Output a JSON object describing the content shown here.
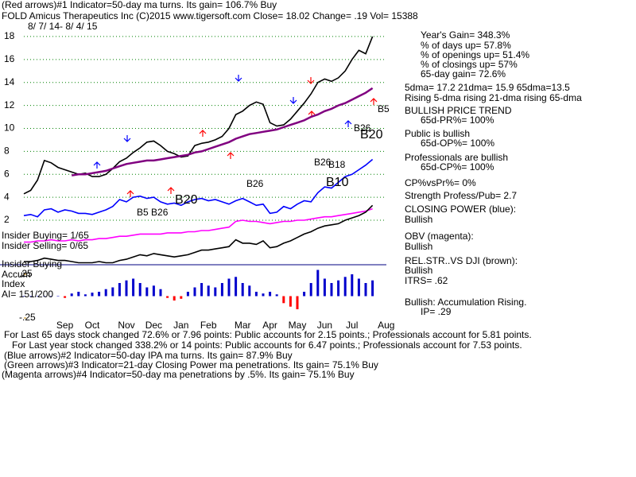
{
  "header": [
    "(Red arrows)#1 Indicator=50-day ma turns. Its gain= 106.7% Buy",
    "FOLD   Amicus Therapeutics Inc  (C)2015 www.tigersoft.com    Close=  18.02  Change= .19 Vol= 15388",
    "8/ 7/ 14-  8/ 4/ 15"
  ],
  "chart_data": [
    {
      "type": "line",
      "categories": [
        null,
        null,
        null,
        null,
        null,
        null,
        "Sep",
        null,
        null,
        null,
        "Oct",
        null,
        null,
        null,
        null,
        "Nov",
        null,
        null,
        null,
        "Dec",
        null,
        null,
        null,
        "Jan",
        null,
        null,
        null,
        "Feb",
        null,
        null,
        null,
        null,
        "Mar",
        null,
        null,
        null,
        "Apr",
        null,
        null,
        null,
        "May",
        null,
        null,
        null,
        "Jun",
        null,
        null,
        null,
        "Jul",
        null,
        null,
        null,
        null,
        "Aug"
      ],
      "ylim": [
        -2,
        19.2
      ],
      "yticks": [
        2,
        4,
        6,
        8,
        10,
        12,
        14,
        16,
        18
      ],
      "grid": true,
      "series": [
        {
          "color": "#000000",
          "values": [
            4.3,
            4.6,
            5.5,
            7.2,
            7.0,
            6.6,
            6.4,
            6.2,
            6.0,
            6.1,
            5.8,
            5.8,
            6.0,
            6.5,
            7.1,
            7.4,
            7.9,
            8.3,
            8.8,
            8.9,
            8.5,
            8.0,
            7.8,
            7.5,
            7.6,
            8.5,
            8.7,
            8.8,
            9.0,
            9.3,
            10.0,
            11.2,
            11.5,
            12.0,
            12.3,
            12.1,
            10.5,
            10.2,
            10.3,
            10.8,
            11.5,
            12.2,
            13.0,
            14.0,
            14.3,
            14.1,
            14.4,
            15.0,
            16.0,
            16.8,
            16.5,
            18.0,
            null,
            null
          ]
        },
        {
          "color": "#800080",
          "values": [
            null,
            null,
            null,
            null,
            null,
            null,
            null,
            5.9,
            6.0,
            6.0,
            6.1,
            6.2,
            6.3,
            6.5,
            6.7,
            6.9,
            7.0,
            7.1,
            7.2,
            7.2,
            7.3,
            7.4,
            7.5,
            7.6,
            7.7,
            7.9,
            8.0,
            8.2,
            8.4,
            8.6,
            8.8,
            9.1,
            9.3,
            9.5,
            9.6,
            9.7,
            9.8,
            9.9,
            10.1,
            10.3,
            10.5,
            10.7,
            11.0,
            11.2,
            11.5,
            11.7,
            12.0,
            12.2,
            12.5,
            12.8,
            13.1,
            13.5,
            null,
            null
          ]
        },
        {
          "color": "#0000ff",
          "values": [
            2.4,
            2.5,
            2.3,
            2.9,
            3.0,
            2.7,
            2.9,
            2.8,
            2.6,
            2.6,
            2.5,
            2.7,
            2.9,
            3.2,
            3.8,
            3.6,
            4.0,
            4.1,
            3.9,
            4.0,
            3.6,
            3.4,
            3.5,
            3.3,
            3.6,
            3.8,
            3.9,
            3.7,
            3.8,
            3.6,
            3.4,
            3.7,
            3.9,
            3.6,
            3.3,
            3.4,
            2.6,
            2.7,
            3.2,
            3.0,
            3.4,
            3.7,
            3.6,
            4.4,
            4.9,
            4.8,
            5.3,
            5.8,
            6.0,
            6.4,
            6.8,
            7.3,
            null,
            null
          ]
        },
        {
          "color": "#ff00ff",
          "values": [
            0.1,
            0.1,
            0.2,
            0.2,
            0.3,
            0.2,
            0.2,
            0.3,
            0.2,
            0.3,
            0.3,
            0.4,
            0.4,
            0.5,
            0.6,
            0.6,
            0.7,
            0.8,
            0.8,
            0.8,
            0.8,
            0.9,
            0.9,
            0.9,
            1.0,
            1.0,
            1.1,
            1.1,
            1.2,
            1.3,
            1.4,
            1.9,
            2.0,
            1.9,
            1.9,
            1.8,
            1.7,
            1.8,
            1.9,
            1.9,
            2.0,
            2.0,
            2.1,
            2.2,
            2.3,
            2.3,
            2.4,
            2.5,
            2.6,
            2.7,
            2.8,
            3.0,
            null,
            null
          ]
        },
        {
          "color": "#000000",
          "values": [
            -1.6,
            -1.6,
            -1.5,
            -1.3,
            -1.4,
            -1.5,
            -1.5,
            -1.6,
            -1.7,
            -1.7,
            -1.7,
            -1.6,
            -1.7,
            -1.7,
            -1.5,
            -1.4,
            -1.2,
            -1.0,
            -1.1,
            -0.9,
            -1.0,
            -1.1,
            -1.2,
            -1.1,
            -1.0,
            -0.8,
            -0.6,
            -0.6,
            -0.5,
            -0.4,
            -0.3,
            0.3,
            0.0,
            0.0,
            -0.1,
            0.2,
            -0.4,
            -0.3,
            0.0,
            0.2,
            0.5,
            0.8,
            1.0,
            1.3,
            1.5,
            1.6,
            1.7,
            2.0,
            2.2,
            2.4,
            2.7,
            3.3,
            null,
            null
          ]
        }
      ]
    },
    {
      "type": "bar",
      "color": "#0000cc",
      "negative_color": "#ff0000",
      "ylim": [
        -0.35,
        0.3
      ],
      "yticks": [
        {
          "value": 0.25,
          "label": ".25"
        },
        {
          "value": -0.25,
          "label": "-.25"
        }
      ],
      "values": [
        0,
        0,
        0,
        0,
        0,
        0,
        -0.02,
        0.03,
        0.05,
        0.02,
        0.04,
        0.05,
        0.08,
        0.1,
        0.15,
        0.18,
        0.2,
        0.15,
        0.1,
        0.12,
        0.08,
        -0.02,
        -0.05,
        -0.03,
        0.05,
        0.1,
        0.15,
        0.12,
        0.1,
        0.15,
        0.2,
        0.22,
        0.15,
        0.12,
        0.05,
        0.03,
        0.05,
        0.02,
        -0.08,
        -0.12,
        -0.15,
        0.05,
        0.15,
        0.3,
        0.2,
        0.15,
        0.18,
        0.22,
        0.25,
        0.2,
        0.15,
        0.18,
        null,
        null
      ]
    }
  ],
  "chart_labels": [
    "B5",
    "B26",
    "B20",
    "B26",
    "B5 B26",
    "B20",
    "B10",
    "B26",
    "B18"
  ],
  "side_labels": [
    "Insider Buying= 1/65",
    "Insider Selling= 0/65",
    "Insider Buying",
    "Accum",
    "Index",
    "AI= 151/200"
  ],
  "right_panel": [
    "Year's Gain= 348.3%",
    "% of days up= 57.8%",
    "% of openings up= 51.4%",
    "% of closings up= 57%",
    "65-day gain= 72.6%",
    "5dma= 17.2 21dma= 15.9 65dma=13.5",
    "Rising 5-dma rising 21-dma  rising 65-dma",
    "BULLISH PRICE TREND",
    "65d-PR%= 100%",
    "Public is bullish",
    "65d-OP%= 100%",
    "Professionals are bullish",
    "65d-CP%= 100%",
    "CP%vsPr%=  0%",
    "Strength Profess/Pub= 2.7",
    "CLOSING POWER (blue):",
    "Bullish",
    "OBV (magenta):",
    "Bullish",
    "REL.STR..VS DJI (brown):",
    "Bullish",
    "ITRS=  .62",
    "Bullish: Accumulation Rising.",
    "IP=  .29"
  ],
  "footer": [
    "For Last 65 days stock changed  72.6% or  7.96 points:  Public accounts for  2.15 points.;  Professionals account for  5.81 points.",
    "For Last year stock changed  338.2% or  14 points:  Public accounts for  6.47 points.;  Professionals account for  7.53 points.",
    "(Blue arrows)#2 Indicator=50-day IPA ma turns. Its gain= 87.9% Buy",
    "(Green arrows)#3 Indicator=21-day Closing Power ma penetrations. Its gain= 75.1% Buy",
    "(Magenta arrows)#4 Indicator=50-day ma penetrations by .5%. Its gain= 75.1% Buy"
  ]
}
